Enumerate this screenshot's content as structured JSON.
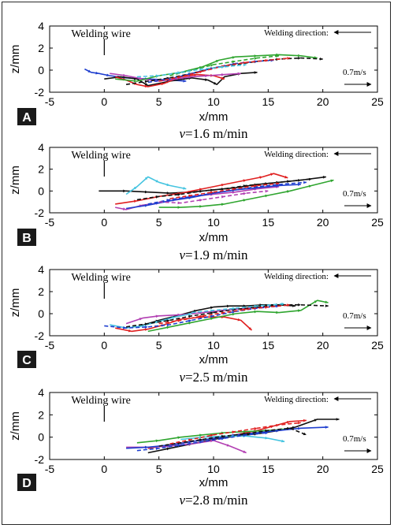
{
  "chart_data": [
    {
      "type": "line",
      "panel_label": "A",
      "caption_prefix": "v",
      "caption_value": "=1.6 m/min",
      "xlabel": "x/mm",
      "ylabel": "z/mm",
      "xlim": [
        -5,
        25
      ],
      "ylim": [
        -2,
        4
      ],
      "xticks": [
        "-5",
        "0",
        "5",
        "10",
        "15",
        "20",
        "25"
      ],
      "yticks": [
        "-2",
        "0",
        "2",
        "4"
      ],
      "annotations": {
        "wire": "Welding wire",
        "direction": "Welding direction:",
        "speed": "0.7m/s"
      },
      "series": [
        {
          "color": "#1f3fcf",
          "dash": false,
          "x": [
            -1.8,
            -1.2,
            -0.5,
            0.5,
            2,
            4,
            6,
            7.5
          ],
          "y": [
            0.1,
            -0.2,
            -0.3,
            -0.5,
            -0.7,
            -0.8,
            -0.9,
            -1.0
          ]
        },
        {
          "color": "#101010",
          "dash": false,
          "x": [
            0,
            1.5,
            3,
            4,
            6,
            8,
            9.5,
            10.3,
            11,
            12.5,
            14
          ],
          "y": [
            -0.8,
            -0.6,
            -0.8,
            -1.4,
            -1.0,
            -0.7,
            -0.9,
            -1.3,
            -0.6,
            -0.3,
            -0.2
          ]
        },
        {
          "color": "#e02020",
          "dash": false,
          "x": [
            1,
            2,
            3,
            4,
            5.5,
            7,
            8.5,
            10,
            11
          ],
          "y": [
            -0.6,
            -0.9,
            -1.3,
            -1.5,
            -1.2,
            -0.6,
            -0.4,
            -0.5,
            -0.8
          ]
        },
        {
          "color": "#b23fb2",
          "dash": false,
          "x": [
            0.5,
            2,
            3.5,
            5,
            6.5,
            8,
            9.5,
            11,
            12.5
          ],
          "y": [
            -0.3,
            -0.5,
            -0.8,
            -1.0,
            -0.8,
            -0.6,
            -0.5,
            -0.4,
            -0.3
          ]
        },
        {
          "color": "#2fa52f",
          "dash": false,
          "x": [
            1,
            3,
            5,
            7,
            9,
            10.5,
            12,
            14,
            16,
            18,
            19.5
          ],
          "y": [
            -0.8,
            -1.0,
            -0.5,
            -0.2,
            0.3,
            0.9,
            1.2,
            1.3,
            1.4,
            1.3,
            1.1
          ]
        },
        {
          "color": "#2fa52f",
          "dash": true,
          "x": [
            6,
            8,
            10,
            12,
            14,
            16
          ],
          "y": [
            -0.5,
            0,
            0.5,
            0.8,
            1.1,
            1.3
          ]
        },
        {
          "color": "#101010",
          "dash": true,
          "x": [
            2,
            4,
            6,
            8,
            10,
            12,
            14,
            16,
            18,
            20
          ],
          "y": [
            -1.3,
            -1.0,
            -0.7,
            -0.3,
            0.2,
            0.5,
            0.8,
            1.0,
            1.1,
            1.0
          ]
        },
        {
          "color": "#1f3fcf",
          "dash": true,
          "x": [
            4,
            6,
            8,
            10,
            12,
            14,
            15.5
          ],
          "y": [
            -1.1,
            -0.8,
            -0.3,
            0.2,
            0.6,
            0.8,
            0.9
          ]
        },
        {
          "color": "#e02020",
          "dash": true,
          "x": [
            5,
            7,
            9,
            11,
            13,
            15,
            17
          ],
          "y": [
            -1.0,
            -0.6,
            -0.1,
            0.4,
            0.7,
            0.9,
            1.1
          ]
        },
        {
          "color": "#45c4e0",
          "dash": true,
          "x": [
            3,
            5,
            7,
            9,
            11,
            13
          ],
          "y": [
            -0.6,
            -0.5,
            -0.2,
            0.1,
            0.3,
            0.5
          ]
        }
      ]
    },
    {
      "type": "line",
      "panel_label": "B",
      "caption_prefix": "v",
      "caption_value": "=1.9 m/min",
      "xlabel": "x/mm",
      "ylabel": "z/mm",
      "xlim": [
        -5,
        25
      ],
      "ylim": [
        -2,
        4
      ],
      "xticks": [
        "-5",
        "0",
        "5",
        "10",
        "15",
        "20",
        "25"
      ],
      "yticks": [
        "-2",
        "0",
        "2",
        "4"
      ],
      "annotations": {
        "wire": "Welding wire",
        "direction": "Welding direction:",
        "speed": "0.7m/s"
      },
      "series": [
        {
          "color": "#101010",
          "dash": false,
          "x": [
            -0.5,
            2,
            4,
            6,
            8,
            10,
            12,
            14,
            16,
            18,
            20.3
          ],
          "y": [
            0,
            0,
            -0.1,
            -0.2,
            -0.1,
            0.1,
            0.3,
            0.6,
            0.8,
            1.0,
            1.3
          ]
        },
        {
          "color": "#e02020",
          "dash": false,
          "x": [
            1,
            3,
            5,
            7,
            9,
            11,
            13,
            14.5,
            15.5,
            16.8
          ],
          "y": [
            -1.2,
            -0.9,
            -0.5,
            -0.2,
            0.2,
            0.6,
            1.0,
            1.3,
            1.6,
            1.2
          ]
        },
        {
          "color": "#45c4e0",
          "dash": false,
          "x": [
            2,
            3,
            4,
            5,
            6,
            7.5
          ],
          "y": [
            -0.3,
            0.4,
            1.3,
            0.8,
            0.5,
            0.2
          ]
        },
        {
          "color": "#b23fb2",
          "dash": false,
          "x": [
            1,
            2,
            3.5,
            5,
            6.5,
            8,
            10,
            12,
            14,
            16
          ],
          "y": [
            -1.5,
            -1.7,
            -1.3,
            -1.1,
            -0.8,
            -0.5,
            -0.3,
            -0.1,
            0.2,
            0.4
          ]
        },
        {
          "color": "#2fa52f",
          "dash": false,
          "x": [
            5,
            7,
            9,
            11,
            13,
            15,
            17,
            19,
            21
          ],
          "y": [
            -1.5,
            -1.5,
            -1.4,
            -1.2,
            -0.8,
            -0.4,
            0,
            0.5,
            1.0
          ]
        },
        {
          "color": "#1f3fcf",
          "dash": false,
          "x": [
            2,
            4,
            6,
            8,
            10,
            12,
            14,
            16,
            18
          ],
          "y": [
            -1.6,
            -1.3,
            -0.9,
            -0.6,
            -0.2,
            0.1,
            0.3,
            0.5,
            0.6
          ]
        },
        {
          "color": "#101010",
          "dash": true,
          "x": [
            3,
            5,
            7,
            9,
            11,
            13,
            15,
            17,
            19
          ],
          "y": [
            -0.8,
            -0.5,
            -0.3,
            0,
            0.2,
            0.5,
            0.7,
            0.9,
            1.1
          ]
        },
        {
          "color": "#1f3fcf",
          "dash": true,
          "x": [
            4,
            6,
            8,
            10,
            12,
            14,
            16,
            18.5
          ],
          "y": [
            -1.2,
            -0.8,
            -0.5,
            -0.2,
            0.1,
            0.4,
            0.6,
            0.8
          ]
        },
        {
          "color": "#e02020",
          "dash": true,
          "x": [
            6,
            8,
            10,
            12,
            14,
            16
          ],
          "y": [
            -0.7,
            -0.4,
            -0.1,
            0.2,
            0.5,
            0.7
          ]
        },
        {
          "color": "#b23fb2",
          "dash": true,
          "x": [
            5,
            7,
            9,
            11,
            13,
            15
          ],
          "y": [
            -1.0,
            -1.1,
            -0.8,
            -0.5,
            -0.2,
            0
          ]
        }
      ]
    },
    {
      "type": "line",
      "panel_label": "C",
      "caption_prefix": "v",
      "caption_value": "=2.5 m/min",
      "xlabel": "x/mm",
      "ylabel": "z/mm",
      "xlim": [
        -5,
        25
      ],
      "ylim": [
        -2,
        4
      ],
      "xticks": [
        "-5",
        "0",
        "5",
        "10",
        "15",
        "20",
        "25"
      ],
      "yticks": [
        "-2",
        "0",
        "2",
        "4"
      ],
      "annotations": {
        "wire": "Welding wire",
        "direction": "Welding direction:",
        "speed": "0.7m/s"
      },
      "series": [
        {
          "color": "#101010",
          "dash": false,
          "x": [
            3,
            5,
            7,
            8.5,
            10,
            11.5,
            13,
            14.5,
            16,
            17.5
          ],
          "y": [
            -1.2,
            -0.6,
            -0.1,
            0.3,
            0.6,
            0.7,
            0.7,
            0.8,
            0.8,
            0.7
          ]
        },
        {
          "color": "#e02020",
          "dash": false,
          "x": [
            1,
            2.5,
            4,
            5.5,
            7,
            9,
            11,
            12.5,
            13.5
          ],
          "y": [
            -1.3,
            -1.6,
            -1.4,
            -1.0,
            -0.5,
            -0.3,
            -0.3,
            -0.6,
            -1.5
          ]
        },
        {
          "color": "#2fa52f",
          "dash": false,
          "x": [
            4,
            6,
            8,
            10,
            12,
            14,
            16,
            18,
            19.5,
            20.5
          ],
          "y": [
            -1.6,
            -1.2,
            -0.8,
            -0.4,
            0,
            0.2,
            0.1,
            0.3,
            1.2,
            1.0
          ]
        },
        {
          "color": "#b23fb2",
          "dash": false,
          "x": [
            2,
            3.5,
            5,
            7,
            9,
            11,
            13,
            15
          ],
          "y": [
            -0.9,
            -0.4,
            -0.2,
            -0.1,
            0.1,
            0.3,
            0.5,
            0.6
          ]
        },
        {
          "color": "#45c4e0",
          "dash": false,
          "x": [
            0.5,
            2,
            3.5,
            5,
            6.5,
            8
          ],
          "y": [
            -1.0,
            -1.3,
            -1.1,
            -0.7,
            -0.3,
            0
          ]
        },
        {
          "color": "#101010",
          "dash": true,
          "x": [
            2,
            4,
            6,
            8,
            10,
            12,
            14,
            16,
            18,
            20.5
          ],
          "y": [
            -1.2,
            -0.9,
            -0.6,
            -0.2,
            0.1,
            0.4,
            0.6,
            0.8,
            0.8,
            0.7
          ]
        },
        {
          "color": "#1f3fcf",
          "dash": true,
          "x": [
            0,
            2,
            4,
            6,
            8,
            10,
            12,
            14,
            16
          ],
          "y": [
            -1.1,
            -1.3,
            -1.2,
            -1.0,
            -0.6,
            -0.2,
            0.2,
            0.5,
            0.7
          ]
        },
        {
          "color": "#e02020",
          "dash": true,
          "x": [
            5,
            7,
            9,
            11,
            13,
            15,
            17
          ],
          "y": [
            -0.9,
            -0.6,
            -0.2,
            0.1,
            0.4,
            0.6,
            0.8
          ]
        },
        {
          "color": "#45c4e0",
          "dash": true,
          "x": [
            8,
            10,
            12,
            14,
            16.5
          ],
          "y": [
            0.1,
            0.3,
            0.5,
            0.7,
            0.9
          ]
        }
      ]
    },
    {
      "type": "line",
      "panel_label": "D",
      "caption_prefix": "v",
      "caption_value": "=2.8 m/min",
      "xlabel": "x/mm",
      "ylabel": "z/mm",
      "xlim": [
        -5,
        25
      ],
      "ylim": [
        -2,
        4
      ],
      "xticks": [
        "-5",
        "0",
        "5",
        "10",
        "15",
        "20",
        "25"
      ],
      "yticks": [
        "-2",
        "0",
        "2",
        "4"
      ],
      "annotations": {
        "wire": "Welding wire",
        "direction": "Welding direction:",
        "speed": "0.7m/s"
      },
      "series": [
        {
          "color": "#101010",
          "dash": false,
          "x": [
            4,
            6,
            8,
            10,
            12,
            14,
            16,
            17.5,
            19.5,
            21.5
          ],
          "y": [
            -1.4,
            -1.0,
            -0.6,
            -0.2,
            0.1,
            0.3,
            0.6,
            0.9,
            1.6,
            1.6
          ]
        },
        {
          "color": "#e02020",
          "dash": false,
          "x": [
            4,
            6,
            8,
            10,
            12,
            14,
            15.5,
            17,
            18.5
          ],
          "y": [
            -1.0,
            -0.7,
            -0.4,
            -0.1,
            0.2,
            0.6,
            1.0,
            1.4,
            1.5
          ]
        },
        {
          "color": "#b23fb2",
          "dash": false,
          "x": [
            2,
            4,
            6,
            8,
            10,
            11.5,
            13
          ],
          "y": [
            -0.9,
            -0.9,
            -0.8,
            -0.6,
            -0.3,
            -0.8,
            -1.4
          ]
        },
        {
          "color": "#2fa52f",
          "dash": false,
          "x": [
            3,
            5,
            7,
            9,
            11,
            13,
            15,
            16.5
          ],
          "y": [
            -0.5,
            -0.3,
            0,
            0.2,
            0.4,
            0.5,
            0.6,
            0.7
          ]
        },
        {
          "color": "#1f3fcf",
          "dash": false,
          "x": [
            2,
            4,
            6,
            8,
            10,
            12,
            14,
            16,
            18,
            20.5
          ],
          "y": [
            -1.0,
            -0.9,
            -0.7,
            -0.4,
            -0.1,
            0.2,
            0.4,
            0.6,
            0.8,
            0.9
          ]
        },
        {
          "color": "#45c4e0",
          "dash": false,
          "x": [
            7,
            9,
            11,
            13,
            15,
            16.5
          ],
          "y": [
            -0.2,
            0,
            0.1,
            0.1,
            -0.1,
            -0.4
          ]
        },
        {
          "color": "#101010",
          "dash": true,
          "x": [
            5,
            7,
            9,
            11,
            13,
            15,
            17,
            18.5
          ],
          "y": [
            -0.8,
            -0.5,
            -0.2,
            0.1,
            0.3,
            0.6,
            0.8,
            0.2
          ]
        },
        {
          "color": "#e02020",
          "dash": true,
          "x": [
            6,
            8,
            10,
            12,
            14,
            16,
            18
          ],
          "y": [
            -0.6,
            -0.2,
            0.2,
            0.5,
            0.8,
            1.1,
            1.3
          ]
        },
        {
          "color": "#1f3fcf",
          "dash": true,
          "x": [
            3,
            5,
            7,
            9,
            11,
            13,
            15
          ],
          "y": [
            -1.2,
            -1.0,
            -0.7,
            -0.4,
            -0.1,
            0.2,
            0.4
          ]
        }
      ]
    }
  ]
}
